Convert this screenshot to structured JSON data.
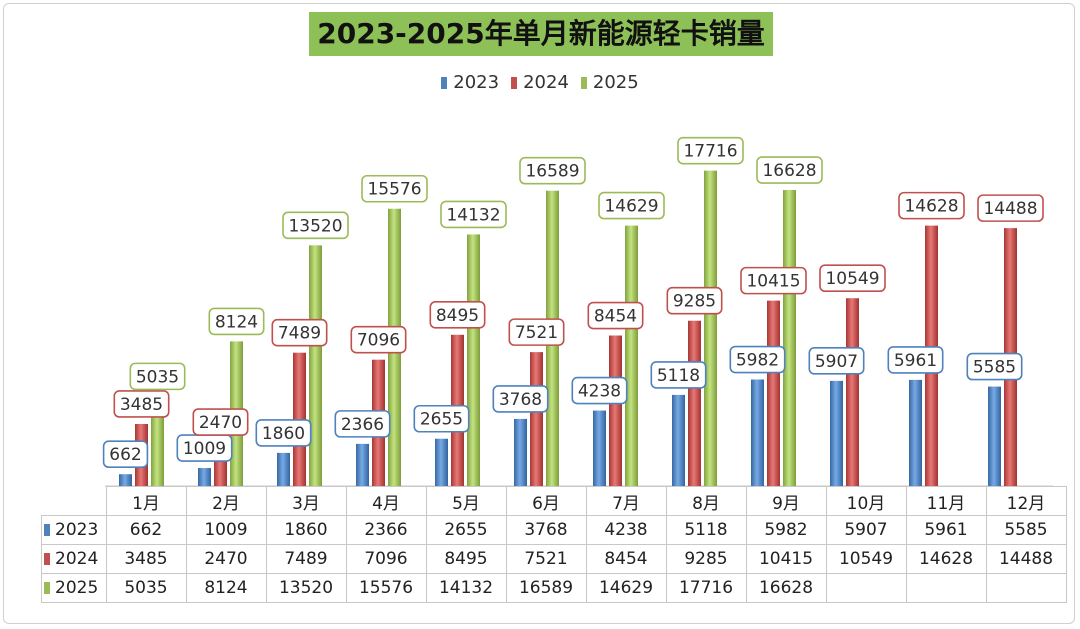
{
  "colors": {
    "2023": "#4f81bd",
    "2024": "#c0504d",
    "2025": "#9bbb59",
    "title_bg": "#8dc158"
  },
  "chart_data": {
    "type": "bar",
    "title": "2023-2025年单月新能源轻卡销量",
    "categories": [
      "1月",
      "2月",
      "3月",
      "4月",
      "5月",
      "6月",
      "7月",
      "8月",
      "9月",
      "10月",
      "11月",
      "12月"
    ],
    "series": [
      {
        "name": "2023",
        "values": [
          662,
          1009,
          1860,
          2366,
          2655,
          3768,
          4238,
          5118,
          5982,
          5907,
          5961,
          5585
        ]
      },
      {
        "name": "2024",
        "values": [
          3485,
          2470,
          7489,
          7096,
          8495,
          7521,
          8454,
          9285,
          10415,
          10549,
          14628,
          14488
        ]
      },
      {
        "name": "2025",
        "values": [
          5035,
          8124,
          13520,
          15576,
          14132,
          16589,
          14629,
          17716,
          16628,
          null,
          null,
          null
        ]
      }
    ],
    "ylim": [
      0,
      20000
    ],
    "legend_position": "top",
    "xlabel": "",
    "ylabel": "",
    "data_table": true
  }
}
